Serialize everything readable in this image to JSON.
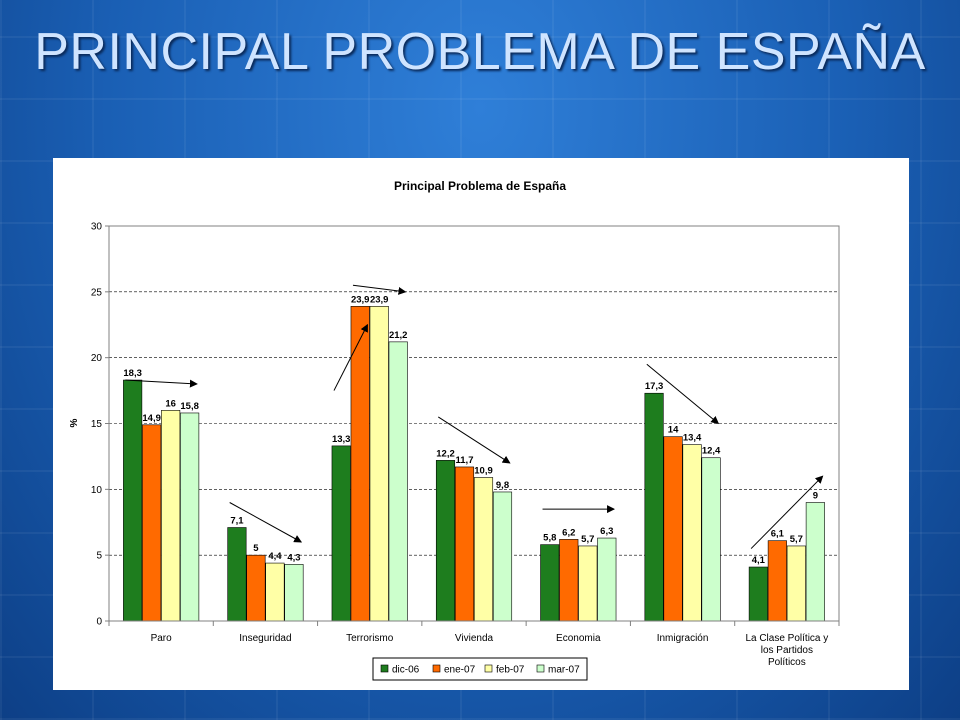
{
  "slide": {
    "title": "PRINCIPAL PROBLEMA DE ESPAÑA"
  },
  "chart_data": {
    "type": "bar",
    "title": "Principal Problema de España",
    "ylabel": "%",
    "xlabel": "",
    "ylim": [
      0,
      30
    ],
    "yticks": [
      0,
      5,
      10,
      15,
      20,
      25,
      30
    ],
    "grid": true,
    "legend_position": "bottom",
    "categories": [
      [
        "Paro"
      ],
      [
        "Inseguridad"
      ],
      [
        "Terrorismo"
      ],
      [
        "Vivienda"
      ],
      [
        "Economia"
      ],
      [
        "Inmigración"
      ],
      [
        "La Clase Política y",
        "los Partidos",
        "Políticos"
      ]
    ],
    "series": [
      {
        "name": "dic-06",
        "color": "#1e7d1e",
        "values": [
          18.3,
          7.1,
          13.3,
          12.2,
          5.8,
          17.3,
          4.1
        ],
        "labels": [
          "18,3",
          "7,1",
          "13,3",
          "12,2",
          "5,8",
          "17,3",
          "4,1"
        ]
      },
      {
        "name": "ene-07",
        "color": "#ff6a00",
        "values": [
          14.9,
          5,
          23.9,
          11.7,
          6.2,
          14,
          6.1
        ],
        "labels": [
          "14,9",
          "5",
          "23,9",
          "11,7",
          "6,2",
          "14",
          "6,1"
        ]
      },
      {
        "name": "feb-07",
        "color": "#ffffa6",
        "values": [
          16,
          4.4,
          23.9,
          10.9,
          5.7,
          13.4,
          5.7
        ],
        "labels": [
          "16",
          "4,4",
          "23,9",
          "10,9",
          "5,7",
          "13,4",
          "5,7"
        ]
      },
      {
        "name": "mar-07",
        "color": "#ccffcc",
        "values": [
          15.8,
          4.3,
          21.2,
          9.8,
          6.3,
          12.4,
          9
        ],
        "labels": [
          "15,8",
          "4,3",
          "21,2",
          "9,8",
          "6,3",
          "12,4",
          "9"
        ]
      }
    ],
    "trend_arrows": [
      {
        "category": 0,
        "from": [
          "dic-06",
          18.3
        ],
        "to": [
          "mar-07",
          18.0
        ]
      },
      {
        "category": 1,
        "from": [
          "dic-06",
          9.0
        ],
        "to": [
          "mar-07",
          6.0
        ]
      },
      {
        "category": 2,
        "from": [
          "dic-06",
          17.5
        ],
        "to": [
          "ene-07",
          22.5
        ]
      },
      {
        "category": 2,
        "from": [
          "ene-07",
          25.5
        ],
        "to": [
          "mar-07",
          25.0
        ]
      },
      {
        "category": 3,
        "from": [
          "dic-06",
          15.5
        ],
        "to": [
          "mar-07",
          12.0
        ]
      },
      {
        "category": 4,
        "from": [
          "dic-06",
          8.5
        ],
        "to": [
          "mar-07",
          8.5
        ]
      },
      {
        "category": 5,
        "from": [
          "dic-06",
          19.5
        ],
        "to": [
          "mar-07",
          15.0
        ]
      },
      {
        "category": 6,
        "from": [
          "dic-06",
          5.5
        ],
        "to": [
          "mar-07",
          11.0
        ]
      }
    ]
  }
}
